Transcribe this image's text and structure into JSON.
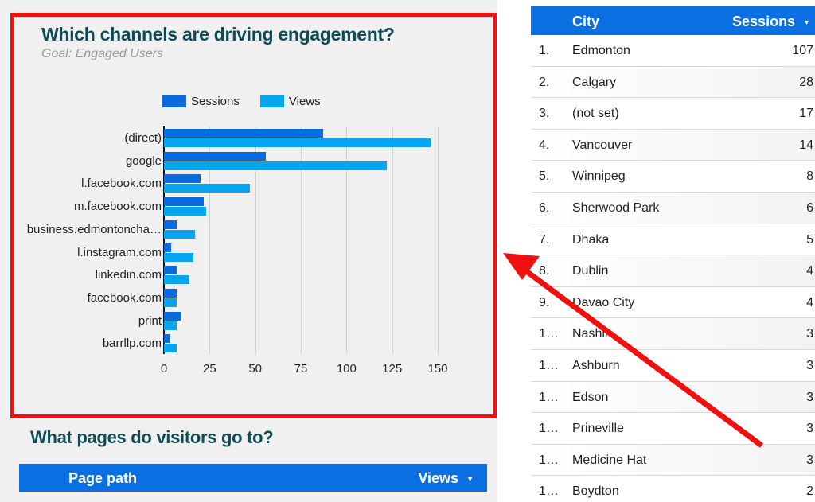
{
  "channels_chart": {
    "title": "Which channels are driving engagement?",
    "subtitle": "Goal: Engaged Users",
    "legend": [
      {
        "label": "Sessions",
        "color": "#0a6ae0"
      },
      {
        "label": "Views",
        "color": "#05a5f0"
      }
    ],
    "x_ticks": [
      "0",
      "25",
      "50",
      "75",
      "100",
      "125",
      "150"
    ]
  },
  "chart_data": {
    "type": "bar",
    "orientation": "horizontal",
    "title": "Which channels are driving engagement?",
    "subtitle": "Goal: Engaged Users",
    "categories": [
      "(direct)",
      "google",
      "l.facebook.com",
      "m.facebook.com",
      "business.edmontoncha…",
      "l.instagram.com",
      "linkedin.com",
      "facebook.com",
      "print",
      "barrllp.com"
    ],
    "series": [
      {
        "name": "Sessions",
        "color": "#0a6ae0",
        "values": [
          87,
          56,
          20,
          22,
          7,
          4,
          7,
          7,
          9,
          3
        ]
      },
      {
        "name": "Views",
        "color": "#05a5f0",
        "values": [
          146,
          122,
          47,
          23,
          17,
          16,
          14,
          7,
          7,
          7
        ]
      }
    ],
    "xlabel": "",
    "ylabel": "",
    "xlim": [
      0,
      150
    ],
    "x_ticks": [
      0,
      25,
      50,
      75,
      100,
      125,
      150
    ],
    "grid": true,
    "legend_position": "top"
  },
  "pages_section": {
    "title": "What pages do visitors go to?",
    "columns": {
      "path": "Page path",
      "views": "Views"
    },
    "sort_icon": "▼"
  },
  "city_table": {
    "columns": {
      "city": "City",
      "sessions": "Sessions"
    },
    "sort_icon": "▼",
    "rows": [
      {
        "rank": "1.",
        "city": "Edmonton",
        "sessions": "107"
      },
      {
        "rank": "2.",
        "city": "Calgary",
        "sessions": "28"
      },
      {
        "rank": "3.",
        "city": "(not set)",
        "sessions": "17"
      },
      {
        "rank": "4.",
        "city": "Vancouver",
        "sessions": "14"
      },
      {
        "rank": "5.",
        "city": "Winnipeg",
        "sessions": "8"
      },
      {
        "rank": "6.",
        "city": "Sherwood Park",
        "sessions": "6"
      },
      {
        "rank": "7.",
        "city": "Dhaka",
        "sessions": "5"
      },
      {
        "rank": "8.",
        "city": "Dublin",
        "sessions": "4"
      },
      {
        "rank": "9.",
        "city": "Davao City",
        "sessions": "4"
      },
      {
        "rank": "1…",
        "city": "Nashik",
        "sessions": "3"
      },
      {
        "rank": "1…",
        "city": "Ashburn",
        "sessions": "3"
      },
      {
        "rank": "1…",
        "city": "Edson",
        "sessions": "3"
      },
      {
        "rank": "1…",
        "city": "Prineville",
        "sessions": "3"
      },
      {
        "rank": "1…",
        "city": "Medicine Hat",
        "sessions": "3"
      },
      {
        "rank": "1…",
        "city": "Boydton",
        "sessions": "2"
      }
    ]
  },
  "annotations": {
    "highlight_color": "#f01010"
  }
}
